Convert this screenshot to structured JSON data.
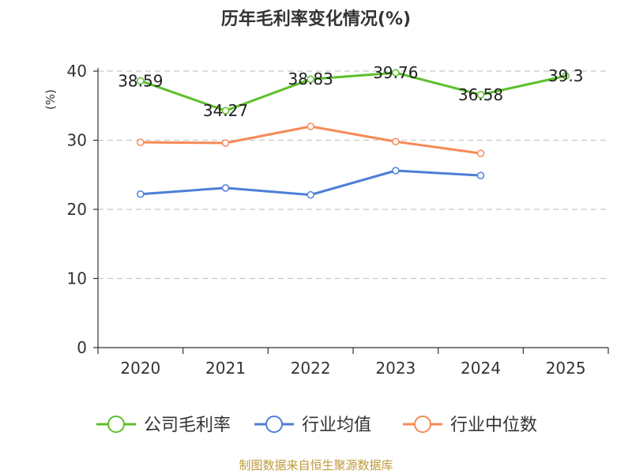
{
  "chart_data": {
    "type": "line",
    "title": "历年毛利率变化情况(%)",
    "ylabel": "(%)",
    "categories": [
      "2020",
      "2021",
      "2022",
      "2023",
      "2024",
      "2025"
    ],
    "ylim": [
      0,
      40
    ],
    "yticks": [
      0,
      10,
      20,
      30,
      40
    ],
    "grid": true,
    "legend_position": "bottom",
    "series": [
      {
        "name": "公司毛利率",
        "color": "#5dbf2b",
        "values": [
          38.59,
          34.27,
          38.83,
          39.76,
          36.58,
          39.3
        ],
        "labels": [
          "38.59",
          "34.27",
          "38.83",
          "39.76",
          "36.58",
          "39.3"
        ]
      },
      {
        "name": "行业均值",
        "color": "#4e7fd6",
        "values": [
          22.2,
          23.1,
          22.1,
          25.6,
          24.9,
          null
        ]
      },
      {
        "name": "行业中位数",
        "color": "#f68a56",
        "values": [
          29.7,
          29.6,
          32.0,
          29.8,
          28.1,
          null
        ]
      }
    ],
    "ylabel_color": "#cc0000"
  },
  "source_note": "制图数据来自恒生聚源数据库"
}
